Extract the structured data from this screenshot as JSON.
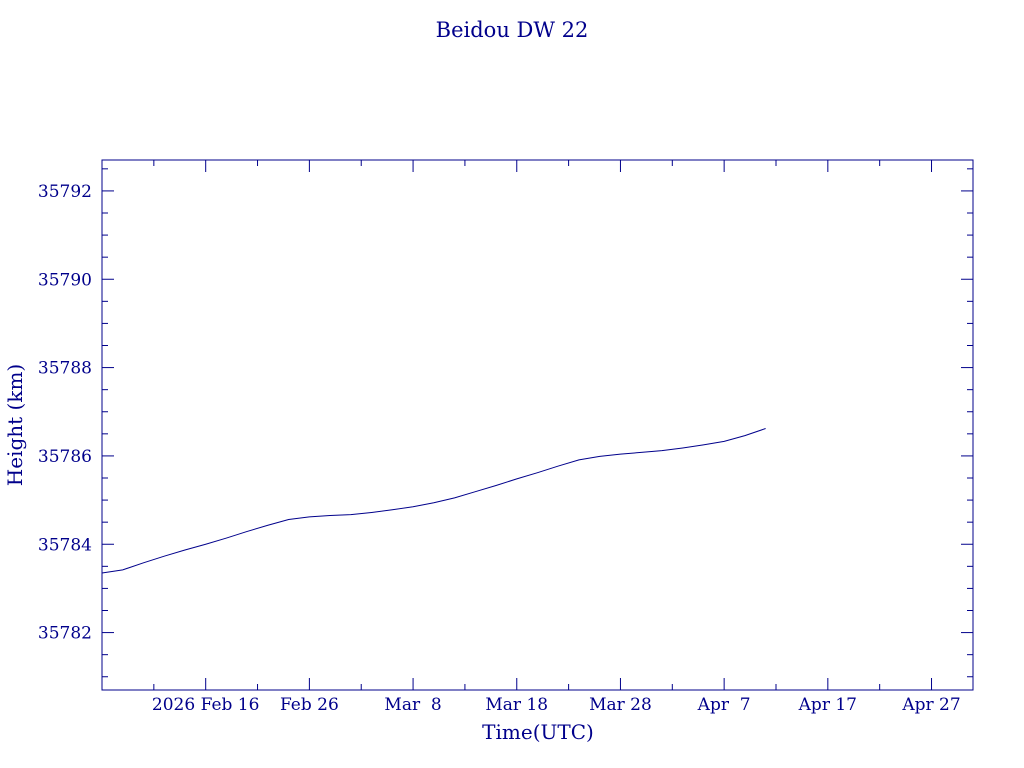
{
  "chart_data": {
    "type": "line",
    "title": "Beidou DW 22",
    "xlabel": "Time(UTC)",
    "ylabel": "Height (km)",
    "x_start": "2026-02-06",
    "xlim": [
      "2026-02-06",
      "2026-05-01"
    ],
    "ylim": [
      35780.7,
      35792.7
    ],
    "grid": false,
    "x_ticks": [
      {
        "date": "2026-02-16",
        "label": "2026 Feb 16"
      },
      {
        "date": "2026-02-26",
        "label": "Feb 26"
      },
      {
        "date": "2026-03-08",
        "label": "Mar  8"
      },
      {
        "date": "2026-03-18",
        "label": "Mar 18"
      },
      {
        "date": "2026-03-28",
        "label": "Mar 28"
      },
      {
        "date": "2026-04-07",
        "label": "Apr  7"
      },
      {
        "date": "2026-04-17",
        "label": "Apr 17"
      },
      {
        "date": "2026-04-27",
        "label": "Apr 27"
      }
    ],
    "y_ticks": [
      35782,
      35784,
      35786,
      35788,
      35790,
      35792
    ],
    "series": [
      {
        "color": "#00008b",
        "points": [
          [
            "2026-02-06",
            35783.35
          ],
          [
            "2026-02-08",
            35783.42
          ],
          [
            "2026-02-10",
            35783.58
          ],
          [
            "2026-02-12",
            35783.73
          ],
          [
            "2026-02-14",
            35783.87
          ],
          [
            "2026-02-16",
            35784.0
          ],
          [
            "2026-02-18",
            35784.14
          ],
          [
            "2026-02-20",
            35784.29
          ],
          [
            "2026-02-22",
            35784.43
          ],
          [
            "2026-02-24",
            35784.56
          ],
          [
            "2026-02-26",
            35784.62
          ],
          [
            "2026-02-28",
            35784.65
          ],
          [
            "2026-03-02",
            35784.67
          ],
          [
            "2026-03-04",
            35784.72
          ],
          [
            "2026-03-06",
            35784.78
          ],
          [
            "2026-03-08",
            35784.85
          ],
          [
            "2026-03-10",
            35784.94
          ],
          [
            "2026-03-12",
            35785.05
          ],
          [
            "2026-03-14",
            35785.19
          ],
          [
            "2026-03-16",
            35785.33
          ],
          [
            "2026-03-18",
            35785.48
          ],
          [
            "2026-03-20",
            35785.62
          ],
          [
            "2026-03-22",
            35785.77
          ],
          [
            "2026-03-24",
            35785.91
          ],
          [
            "2026-03-26",
            35785.99
          ],
          [
            "2026-03-28",
            35786.04
          ],
          [
            "2026-03-30",
            35786.08
          ],
          [
            "2026-04-01",
            35786.12
          ],
          [
            "2026-04-03",
            35786.18
          ],
          [
            "2026-04-05",
            35786.25
          ],
          [
            "2026-04-07",
            35786.33
          ],
          [
            "2026-04-09",
            35786.46
          ],
          [
            "2026-04-11",
            35786.62
          ]
        ]
      }
    ]
  }
}
